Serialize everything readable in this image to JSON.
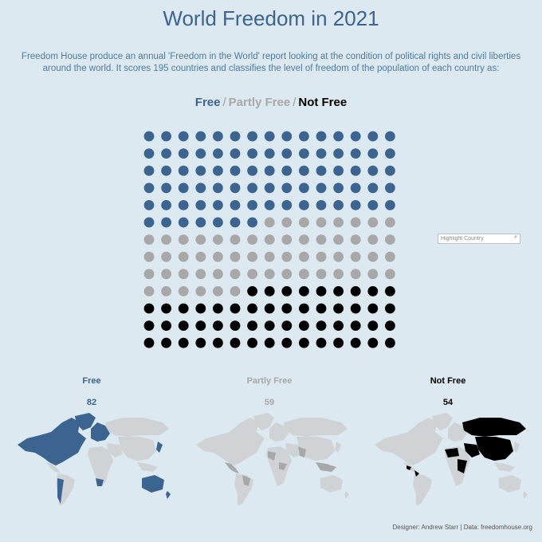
{
  "title": "World Freedom in 2021",
  "subtitle": {
    "line1": "Freedom House produce an annual 'Freedom in the World' report looking at the condition of political rights and civil liberties",
    "line2": "around the world.  It scores 195 countries and classifies the level of freedom of the population of each country as:"
  },
  "legend": {
    "free": "Free",
    "partly_free": "Partly Free",
    "not_free": "Not Free",
    "separator": "/"
  },
  "search": {
    "placeholder": "Highlight Country",
    "icon": "search-icon"
  },
  "colors": {
    "free": "#3b6490",
    "partly_free": "#a8a8a8",
    "not_free": "#000000",
    "map_gray": "#cfd3d6",
    "background": "#dde9f0"
  },
  "chart_data": {
    "type": "waffle",
    "columns": 15,
    "rows": 13,
    "total": 195,
    "series": [
      {
        "name": "Free",
        "value": 82
      },
      {
        "name": "Partly Free",
        "value": 59
      },
      {
        "name": "Not Free",
        "value": 54
      }
    ]
  },
  "categories": [
    {
      "label": "Free",
      "count": "82"
    },
    {
      "label": "Partly Free",
      "count": "59"
    },
    {
      "label": "Not Free",
      "count": "54"
    }
  ],
  "footer": "Designer:  Andrew Starr  |  Data:  freedomhouse.org"
}
